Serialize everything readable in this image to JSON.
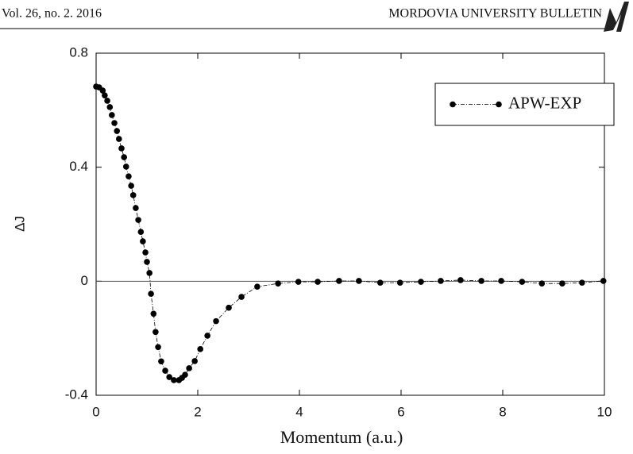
{
  "header": {
    "left": "Vol. 26, no. 2. 2016",
    "right": "MORDOVIA UNIVERSITY BULLETIN"
  },
  "chart_data": {
    "type": "line",
    "xlabel": "Momentum (a.u.)",
    "ylabel": "ΔJ",
    "x": [
      0,
      0.06,
      0.13,
      0.17,
      0.22,
      0.27,
      0.31,
      0.36,
      0.41,
      0.45,
      0.5,
      0.55,
      0.59,
      0.64,
      0.69,
      0.73,
      0.78,
      0.83,
      0.88,
      0.92,
      0.97,
      1.0,
      1.05,
      1.08,
      1.13,
      1.17,
      1.22,
      1.28,
      1.36,
      1.44,
      1.53,
      1.63,
      1.69,
      1.75,
      1.83,
      1.94,
      2.05,
      2.19,
      2.36,
      2.61,
      2.86,
      3.17,
      3.58,
      3.98,
      4.36,
      4.78,
      5.17,
      5.59,
      5.98,
      6.39,
      6.78,
      7.17,
      7.58,
      7.97,
      8.38,
      8.77,
      9.17,
      9.56,
      9.98
    ],
    "series": [
      {
        "name": "APW-EXP",
        "color": "#000000",
        "values": [
          0.683,
          0.68,
          0.669,
          0.652,
          0.633,
          0.611,
          0.583,
          0.555,
          0.527,
          0.499,
          0.466,
          0.435,
          0.402,
          0.368,
          0.335,
          0.302,
          0.257,
          0.215,
          0.173,
          0.14,
          0.101,
          0.068,
          0.029,
          -0.044,
          -0.114,
          -0.178,
          -0.231,
          -0.281,
          -0.314,
          -0.336,
          -0.347,
          -0.347,
          -0.339,
          -0.328,
          -0.305,
          -0.28,
          -0.238,
          -0.191,
          -0.14,
          -0.093,
          -0.055,
          -0.019,
          -0.008,
          -0.002,
          -0.002,
          0.001,
          0.001,
          -0.005,
          -0.005,
          -0.002,
          0.001,
          0.004,
          0.001,
          0.001,
          -0.002,
          -0.008,
          -0.008,
          -0.005,
          0.001
        ]
      }
    ],
    "xlim": [
      0,
      10
    ],
    "xticks": [
      0,
      2,
      4,
      6,
      8,
      10
    ],
    "ylim": [
      -0.4,
      0.8
    ],
    "yticks": [
      -0.4,
      0,
      0.4,
      0.8
    ],
    "zero_line": true,
    "legend": "upper right"
  }
}
